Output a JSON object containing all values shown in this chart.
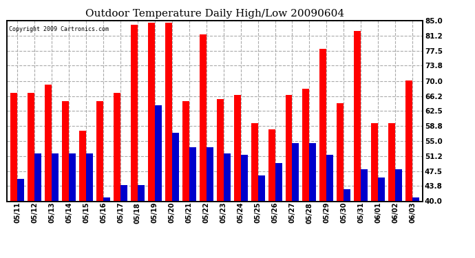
{
  "title": "Outdoor Temperature Daily High/Low 20090604",
  "copyright": "Copyright 2009 Cartronics.com",
  "dates": [
    "05/11",
    "05/12",
    "05/13",
    "05/14",
    "05/15",
    "05/16",
    "05/17",
    "05/18",
    "05/19",
    "05/20",
    "05/21",
    "05/22",
    "05/23",
    "05/24",
    "05/25",
    "05/26",
    "05/27",
    "05/28",
    "05/29",
    "05/30",
    "05/31",
    "06/01",
    "06/02",
    "06/03"
  ],
  "highs": [
    67.0,
    67.0,
    69.0,
    65.0,
    57.5,
    65.0,
    67.0,
    84.0,
    84.5,
    84.5,
    65.0,
    81.5,
    65.5,
    66.5,
    59.5,
    58.0,
    66.5,
    68.0,
    78.0,
    64.5,
    82.5,
    59.5,
    59.5,
    70.0
  ],
  "lows": [
    45.5,
    52.0,
    52.0,
    52.0,
    52.0,
    41.0,
    44.0,
    44.0,
    64.0,
    57.0,
    53.5,
    53.5,
    52.0,
    51.5,
    46.5,
    49.5,
    54.5,
    54.5,
    51.5,
    43.0,
    48.0,
    46.0,
    48.0,
    41.0
  ],
  "high_color": "#ff0000",
  "low_color": "#0000cc",
  "bg_color": "#ffffff",
  "grid_color": "#aaaaaa",
  "ylim_min": 40.0,
  "ylim_max": 85.0,
  "yticks": [
    40.0,
    43.8,
    47.5,
    51.2,
    55.0,
    58.8,
    62.5,
    66.2,
    70.0,
    73.8,
    77.5,
    81.2,
    85.0
  ],
  "title_fontsize": 11,
  "bar_width": 0.4
}
